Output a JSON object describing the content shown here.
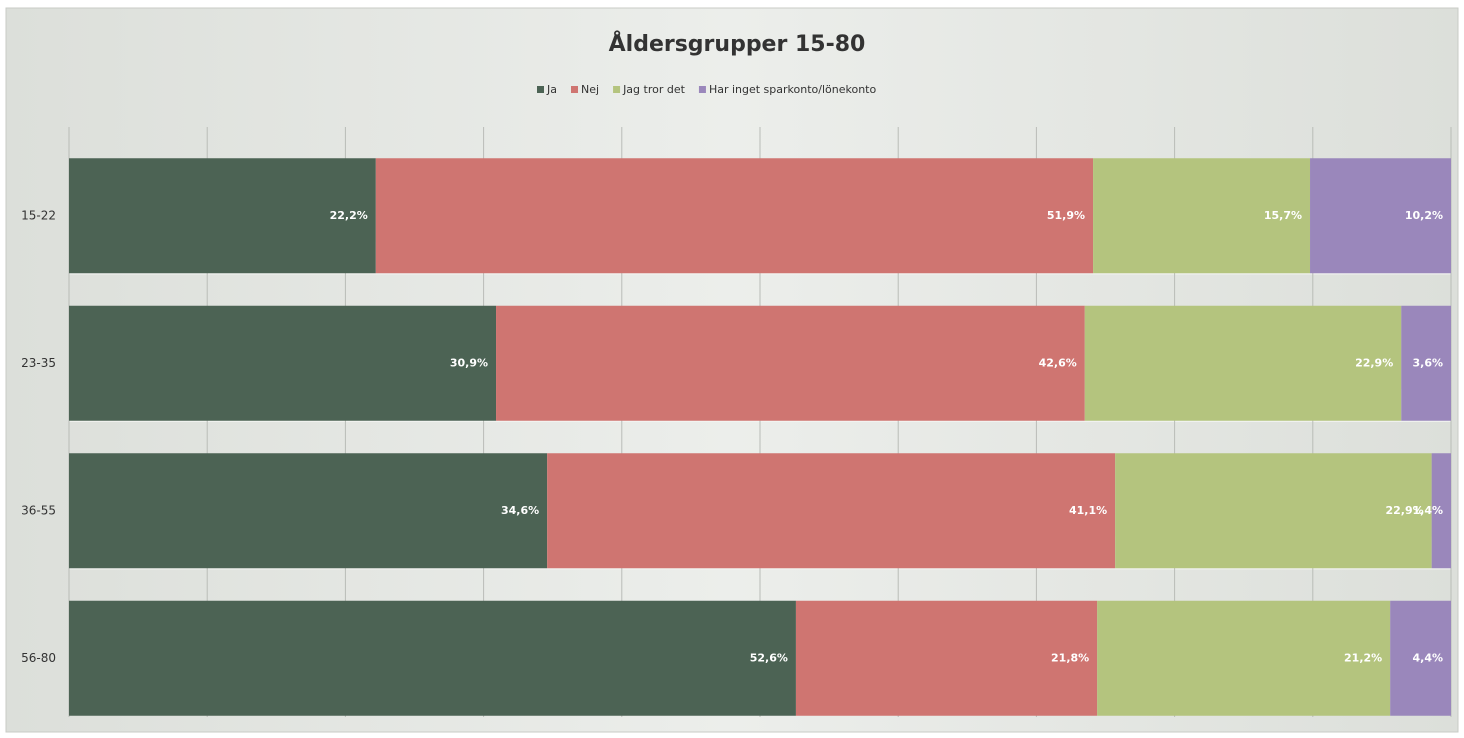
{
  "chart_data": {
    "type": "stacked_bar_horizontal",
    "title": "Åldersgrupper 15-80",
    "categories": [
      "15-22",
      "23-35",
      "36-55",
      "56-80"
    ],
    "series": [
      {
        "name": "Ja",
        "color": "#4c6354",
        "values": [
          22.2,
          30.9,
          34.6,
          52.6
        ],
        "value_labels": [
          "22,2%",
          "30,9%",
          "34,6%",
          "52,6%"
        ]
      },
      {
        "name": "Nej",
        "color": "#cf7571",
        "values": [
          51.9,
          42.6,
          41.1,
          21.8
        ],
        "value_labels": [
          "51,9%",
          "42,6%",
          "41,1%",
          "21,8%"
        ]
      },
      {
        "name": "Jag tror det",
        "color": "#b4c47e",
        "values": [
          15.7,
          22.9,
          22.9,
          21.2
        ],
        "value_labels": [
          "15,7%",
          "22,9%",
          "22,9%",
          "21,2%"
        ]
      },
      {
        "name": "Har inget sparkonto/lönekonto",
        "color": "#9a87bb",
        "values": [
          10.2,
          3.6,
          1.4,
          4.4
        ],
        "value_labels": [
          "10,2%",
          "3,6%",
          "1,4%",
          "4,4%"
        ]
      }
    ],
    "xlim": [
      0,
      100
    ],
    "xticks": [
      0,
      10,
      20,
      30,
      40,
      50,
      60,
      70,
      80,
      90,
      100
    ],
    "grid": true,
    "legend": "top"
  }
}
